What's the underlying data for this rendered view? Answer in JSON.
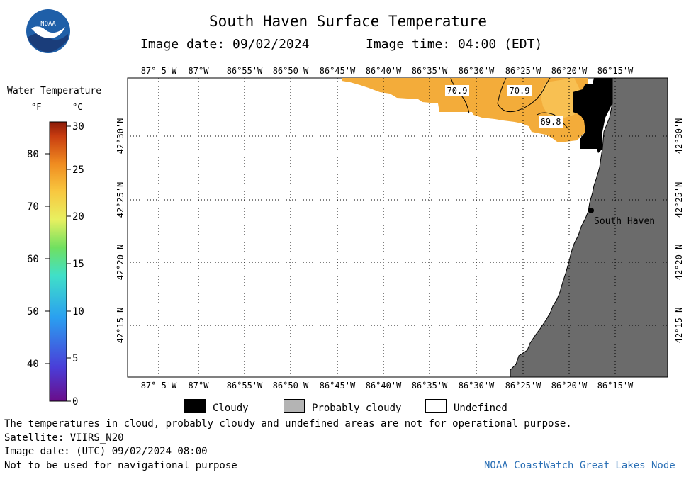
{
  "header": {
    "title": "South Haven Surface Temperature",
    "image_date_label": "Image date: 09/02/2024",
    "image_time_label": "Image time: 04:00 (EDT)"
  },
  "logo": {
    "text": "NOAA",
    "icon": "noaa-logo-icon"
  },
  "colorbar": {
    "title": "Water Temperature",
    "unit_f": "°F",
    "unit_c": "°C",
    "f_ticks": [
      "80",
      "70",
      "60",
      "50",
      "40"
    ],
    "c_ticks": [
      "30",
      "25",
      "20",
      "15",
      "10",
      "5",
      "0"
    ]
  },
  "map": {
    "lon_labels": [
      "87° 5'W",
      "87°W",
      "86°55'W",
      "86°50'W",
      "86°45'W",
      "86°40'W",
      "86°35'W",
      "86°30'W",
      "86°25'W",
      "86°20'W",
      "86°15'W"
    ],
    "lat_labels": [
      "42°30'N",
      "42°25'N",
      "42°20'N",
      "42°15'N"
    ],
    "isotherm_labels": [
      "70.9",
      "70.9",
      "69.8"
    ],
    "place_label": "South Haven",
    "colors": {
      "land": "#6b6b6b",
      "cloud": "#000000",
      "warm_water": "#f3ac3a",
      "water_dark": "#eca032"
    }
  },
  "legend": {
    "cloudy": "Cloudy",
    "probably_cloudy": "Probably cloudy",
    "undefined": "Undefined"
  },
  "footer": {
    "disclaimer": "The temperatures in cloud, probably cloudy and undefined areas are not for operational purpose.",
    "satellite": "Satellite: VIIRS_N20",
    "utc_date": "Image date: (UTC) 09/02/2024  08:00",
    "nav_warning": "Not to be used for navigational purpose",
    "credit": "NOAA CoastWatch Great Lakes Node"
  }
}
